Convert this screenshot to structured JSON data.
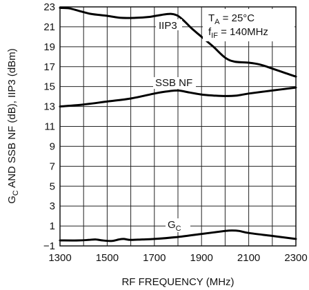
{
  "chart_data": {
    "type": "line",
    "xlabel": "RF FREQUENCY (MHz)",
    "ylabel": {
      "part1_main": "G",
      "part1_sub": "C",
      "part2": " AND SSB NF (dB), IIP3 (dBm)"
    },
    "xlim": [
      1300,
      2300
    ],
    "ylim": [
      -1,
      23
    ],
    "xticks": [
      1300,
      1500,
      1700,
      1900,
      2100,
      2300
    ],
    "yticks": [
      -1,
      1,
      3,
      5,
      7,
      9,
      11,
      13,
      15,
      17,
      19,
      21,
      23
    ],
    "grid": true,
    "conditions": {
      "ta_main": "T",
      "ta_sub": "A",
      "ta_value": " = 25°C",
      "fif_main": "f",
      "fif_sub": "IF",
      "fif_value": " = 140MHz"
    },
    "series": [
      {
        "name": "IIP3",
        "label_main": "IIP3",
        "x": [
          1300,
          1340,
          1380,
          1430,
          1500,
          1560,
          1620,
          1680,
          1730,
          1770,
          1800,
          1830,
          1860,
          1900,
          1950,
          2000,
          2040,
          2100,
          2150,
          2200,
          2250,
          2300
        ],
        "y": [
          22.9,
          22.85,
          22.6,
          22.3,
          22.1,
          21.9,
          21.9,
          22.0,
          22.2,
          22.3,
          22.1,
          21.5,
          20.8,
          20.0,
          19.0,
          17.9,
          17.5,
          17.4,
          17.2,
          16.8,
          16.4,
          16.0
        ]
      },
      {
        "name": "SSB NF",
        "label_main": "SSB NF",
        "x": [
          1300,
          1400,
          1500,
          1600,
          1700,
          1750,
          1800,
          1850,
          1900,
          1950,
          2000,
          2050,
          2100,
          2200,
          2300
        ],
        "y": [
          13.0,
          13.2,
          13.5,
          13.8,
          14.3,
          14.5,
          14.6,
          14.4,
          14.2,
          14.1,
          14.05,
          14.1,
          14.3,
          14.6,
          14.9
        ]
      },
      {
        "name": "GC",
        "label_main": "G",
        "label_sub": "C",
        "x": [
          1300,
          1380,
          1420,
          1450,
          1480,
          1520,
          1550,
          1570,
          1600,
          1650,
          1700,
          1800,
          1900,
          2000,
          2030,
          2060,
          2100,
          2200,
          2300
        ],
        "y": [
          -0.45,
          -0.45,
          -0.4,
          -0.35,
          -0.45,
          -0.5,
          -0.35,
          -0.3,
          -0.4,
          -0.35,
          -0.3,
          -0.1,
          0.2,
          0.5,
          0.55,
          0.5,
          0.3,
          0.0,
          -0.3
        ]
      }
    ]
  }
}
